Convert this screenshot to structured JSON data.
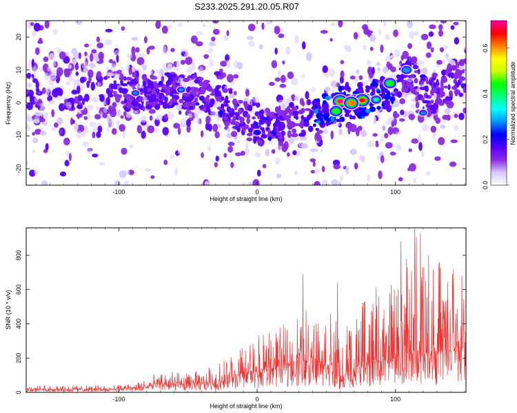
{
  "title": "S233.2025.291.20.05.R07",
  "chart_data": [
    {
      "type": "heatmap",
      "name": "spectrogram",
      "xlabel": "Height of straight line (km)",
      "ylabel": "Frequency (Hz)",
      "xlim": [
        -167,
        151
      ],
      "ylim": [
        -25,
        25
      ],
      "xticks": [
        -100,
        0,
        100
      ],
      "yticks": [
        -20,
        -10,
        0,
        10,
        20
      ],
      "colorbar": {
        "label": "Normalized spectral amplitude",
        "range": [
          0,
          0.72
        ],
        "ticks": [
          "0.0",
          "0.2",
          "0.4",
          "0.6"
        ],
        "tick_values": [
          0.0,
          0.2,
          0.4,
          0.6
        ],
        "colors": [
          "#ffffff",
          "#d8c8ff",
          "#8a2be2",
          "#5500ff",
          "#0000ff",
          "#0090ff",
          "#00ffff",
          "#00ff80",
          "#00ff00",
          "#ccff00",
          "#ffff00",
          "#ff8000",
          "#ff0000",
          "#ff00a0"
        ]
      },
      "ridge": [
        {
          "x": -90,
          "y": 3
        },
        {
          "x": -60,
          "y": 4
        },
        {
          "x": -30,
          "y": 2
        },
        {
          "x": 0,
          "y": -8
        },
        {
          "x": 20,
          "y": -6
        },
        {
          "x": 40,
          "y": -4
        },
        {
          "x": 55,
          "y": -1
        },
        {
          "x": 65,
          "y": 0
        },
        {
          "x": 80,
          "y": 1
        },
        {
          "x": 95,
          "y": 4
        },
        {
          "x": 110,
          "y": 9
        },
        {
          "x": 125,
          "y": 3
        },
        {
          "x": 150,
          "y": 8
        }
      ],
      "peaks": [
        {
          "x": 60,
          "y": 0.5,
          "amplitude": 0.7
        },
        {
          "x": 70,
          "y": 0.5,
          "amplitude": 0.72
        },
        {
          "x": 76,
          "y": 0.8,
          "amplitude": 0.65
        },
        {
          "x": 68,
          "y": 0,
          "amplitude": 0.6
        },
        {
          "x": 57,
          "y": -2.5,
          "amplitude": 0.45
        },
        {
          "x": 86,
          "y": 1,
          "amplitude": 0.4
        },
        {
          "x": 96,
          "y": 6,
          "amplitude": 0.45
        },
        {
          "x": 108,
          "y": 10,
          "amplitude": 0.3
        },
        {
          "x": -88,
          "y": 3,
          "amplitude": 0.25
        },
        {
          "x": -55,
          "y": 4,
          "amplitude": 0.25
        },
        {
          "x": 0,
          "y": -9,
          "amplitude": 0.22
        },
        {
          "x": 120,
          "y": -3,
          "amplitude": 0.25
        }
      ]
    },
    {
      "type": "line",
      "name": "snr",
      "xlabel": "Height of straight line (km)",
      "ylabel": "SNR (10 * v/v)",
      "xlim": [
        -167,
        151
      ],
      "ylim": [
        0,
        960
      ],
      "xticks": [
        -100,
        0,
        100
      ],
      "yticks": [
        0,
        200,
        400,
        600,
        800
      ],
      "color": "#ee3333",
      "envelope": [
        {
          "x": -167,
          "median": 15,
          "max": 40
        },
        {
          "x": -100,
          "median": 18,
          "max": 45
        },
        {
          "x": -80,
          "median": 30,
          "max": 80
        },
        {
          "x": -70,
          "median": 45,
          "max": 130
        },
        {
          "x": -50,
          "median": 45,
          "max": 110
        },
        {
          "x": -30,
          "median": 50,
          "max": 160
        },
        {
          "x": -15,
          "median": 90,
          "max": 250
        },
        {
          "x": 0,
          "median": 110,
          "max": 330
        },
        {
          "x": 20,
          "median": 160,
          "max": 400
        },
        {
          "x": 40,
          "median": 180,
          "max": 560
        },
        {
          "x": 55,
          "median": 150,
          "max": 520
        },
        {
          "x": 60,
          "median": 50,
          "max": 300
        },
        {
          "x": 65,
          "median": 120,
          "max": 420
        },
        {
          "x": 80,
          "median": 160,
          "max": 560
        },
        {
          "x": 100,
          "median": 200,
          "max": 650
        },
        {
          "x": 115,
          "median": 230,
          "max": 960
        },
        {
          "x": 130,
          "median": 220,
          "max": 800
        },
        {
          "x": 151,
          "median": 250,
          "max": 640
        }
      ],
      "spikes": [
        {
          "x": 104,
          "y": 880
        },
        {
          "x": 114,
          "y": 960
        },
        {
          "x": 118,
          "y": 930
        },
        {
          "x": 108,
          "y": 780
        },
        {
          "x": 124,
          "y": 800
        },
        {
          "x": 132,
          "y": 760
        },
        {
          "x": 33,
          "y": 690
        },
        {
          "x": 58,
          "y": 640
        },
        {
          "x": 86,
          "y": 610
        },
        {
          "x": 142,
          "y": 720
        },
        {
          "x": 148,
          "y": 680
        }
      ]
    }
  ]
}
